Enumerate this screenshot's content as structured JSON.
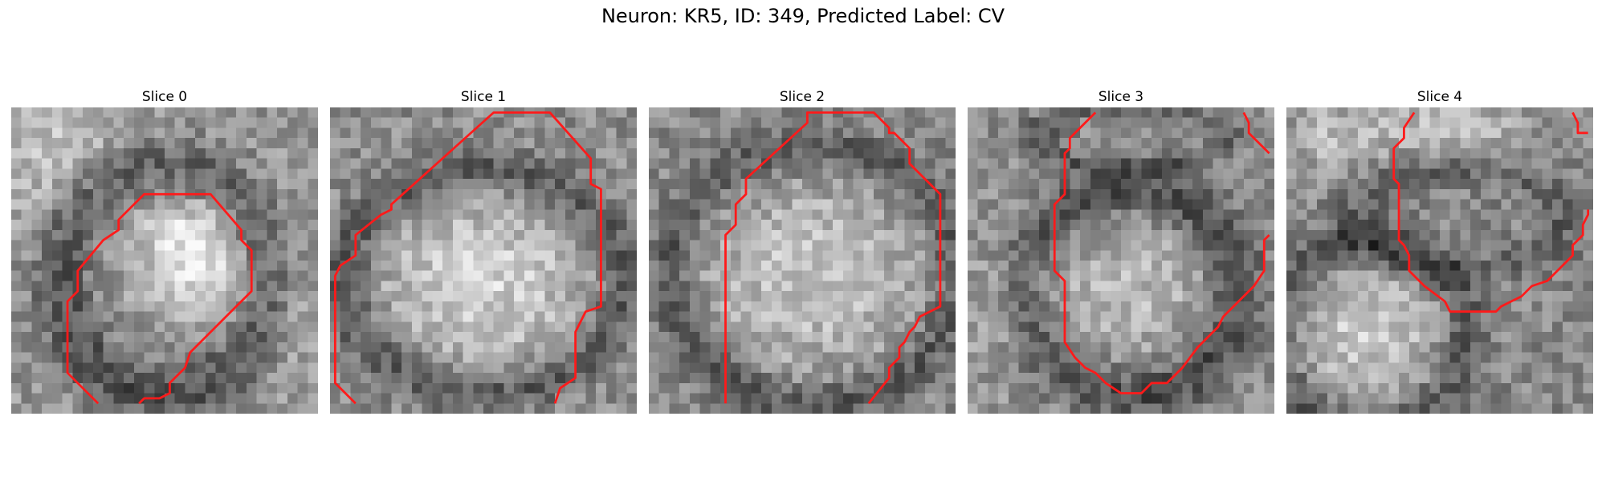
{
  "figure": {
    "title": "Neuron: KR5, ID: 349, Predicted Label: CV"
  },
  "colors": {
    "contour": "#ff1a1a",
    "background": "#ffffff"
  },
  "slices": [
    {
      "label": "Slice 0",
      "contour": [
        [
          8.5,
          29
        ],
        [
          5.5,
          26
        ],
        [
          5.5,
          19
        ],
        [
          6.5,
          18
        ],
        [
          6.5,
          16
        ],
        [
          9,
          13
        ],
        [
          10.5,
          12
        ],
        [
          10.5,
          11
        ],
        [
          13,
          8.5
        ],
        [
          19.5,
          8.5
        ],
        [
          22.5,
          12
        ],
        [
          22.5,
          13
        ],
        [
          23.5,
          14
        ],
        [
          23.5,
          18
        ],
        [
          22,
          19.5
        ],
        [
          17.5,
          24
        ],
        [
          17,
          25.5
        ],
        [
          15.5,
          27
        ],
        [
          15.5,
          28
        ],
        [
          14.5,
          28.5
        ],
        [
          13,
          28.5
        ],
        [
          12.5,
          29
        ]
      ],
      "contour_closed": false
    },
    {
      "label": "Slice 1",
      "contour": [
        [
          2.5,
          29
        ],
        [
          0.5,
          27
        ],
        [
          0.5,
          16.5
        ],
        [
          1,
          15.5
        ],
        [
          2.5,
          14.5
        ],
        [
          2.5,
          12.5
        ],
        [
          5,
          10.5
        ],
        [
          6,
          10
        ],
        [
          6,
          9.5
        ],
        [
          16,
          0.5
        ],
        [
          21.5,
          0.5
        ],
        [
          25.5,
          5
        ],
        [
          25.5,
          7.5
        ],
        [
          26.5,
          8
        ],
        [
          26.5,
          19.5
        ],
        [
          25,
          20
        ],
        [
          24,
          22
        ],
        [
          24,
          26.5
        ],
        [
          22.5,
          27.5
        ],
        [
          22,
          29
        ]
      ],
      "contour_closed": false
    },
    {
      "label": "Slice 2",
      "contour": [
        [
          7.5,
          29
        ],
        [
          7.5,
          12.5
        ],
        [
          8.5,
          11.5
        ],
        [
          8.5,
          9.5
        ],
        [
          9.5,
          8.5
        ],
        [
          9.5,
          7
        ],
        [
          15.5,
          1.5
        ],
        [
          15.5,
          0.5
        ],
        [
          22,
          0.5
        ],
        [
          23.5,
          2
        ],
        [
          23.5,
          2.5
        ],
        [
          24,
          2.5
        ],
        [
          25.5,
          4
        ],
        [
          25.5,
          5.5
        ],
        [
          27.5,
          7.5
        ],
        [
          28.5,
          8.5
        ],
        [
          28.5,
          19.5
        ],
        [
          26.5,
          20.5
        ],
        [
          26,
          21.5
        ],
        [
          25.5,
          22
        ],
        [
          25,
          23
        ],
        [
          24.5,
          23.5
        ],
        [
          24.5,
          24.5
        ],
        [
          23.5,
          25.5
        ],
        [
          23.5,
          26.5
        ],
        [
          21.5,
          29
        ]
      ],
      "contour_closed": false
    },
    {
      "label": "Slice 3",
      "contour": [
        [
          12.5,
          0.5
        ],
        [
          10,
          3
        ],
        [
          10,
          4
        ],
        [
          9.5,
          4.5
        ],
        [
          9.5,
          8.5
        ],
        [
          8.5,
          9.5
        ],
        [
          8.5,
          16
        ],
        [
          9.5,
          17
        ],
        [
          9.5,
          23
        ],
        [
          10.5,
          24.5
        ],
        [
          11.5,
          25.5
        ],
        [
          12.5,
          26
        ],
        [
          13.5,
          27
        ],
        [
          15,
          28
        ],
        [
          17,
          28
        ],
        [
          18,
          27
        ],
        [
          19.5,
          27
        ],
        [
          21,
          25.5
        ],
        [
          22.5,
          23.5
        ],
        [
          23.5,
          22.5
        ],
        [
          24.5,
          21.5
        ],
        [
          25,
          20.5
        ],
        [
          26.5,
          19
        ],
        [
          27.5,
          18
        ],
        [
          28,
          17.5
        ],
        [
          29,
          16
        ],
        [
          29,
          13
        ],
        [
          29.5,
          12.5
        ]
      ],
      "contour_closed": false,
      "extra_contour": [
        [
          27,
          0.5
        ],
        [
          27.5,
          1.5
        ],
        [
          27.5,
          2.5
        ],
        [
          29.5,
          4.5
        ]
      ]
    },
    {
      "label": "Slice 4",
      "contour": [
        [
          12.5,
          0.5
        ],
        [
          11.5,
          2
        ],
        [
          11.5,
          3
        ],
        [
          10.5,
          4
        ],
        [
          10.5,
          7
        ],
        [
          11,
          7.5
        ],
        [
          11,
          13
        ],
        [
          11.5,
          13.5
        ],
        [
          12,
          14.5
        ],
        [
          12,
          16
        ],
        [
          13.5,
          17.5
        ],
        [
          15.5,
          19
        ],
        [
          16,
          20
        ],
        [
          20.5,
          20
        ],
        [
          21,
          19.5
        ],
        [
          22,
          19
        ],
        [
          23,
          18.5
        ],
        [
          24,
          17.5
        ],
        [
          25.5,
          17
        ],
        [
          26.5,
          16
        ],
        [
          27,
          15.5
        ],
        [
          28,
          14.5
        ],
        [
          28,
          13.5
        ],
        [
          29,
          12.5
        ],
        [
          29,
          11.5
        ],
        [
          29.5,
          10.5
        ],
        [
          29.5,
          10
        ]
      ],
      "contour_closed": false,
      "extra_contour": [
        [
          28,
          0.5
        ],
        [
          28.5,
          1.5
        ],
        [
          28.5,
          2.5
        ],
        [
          29.5,
          2.5
        ]
      ]
    }
  ]
}
